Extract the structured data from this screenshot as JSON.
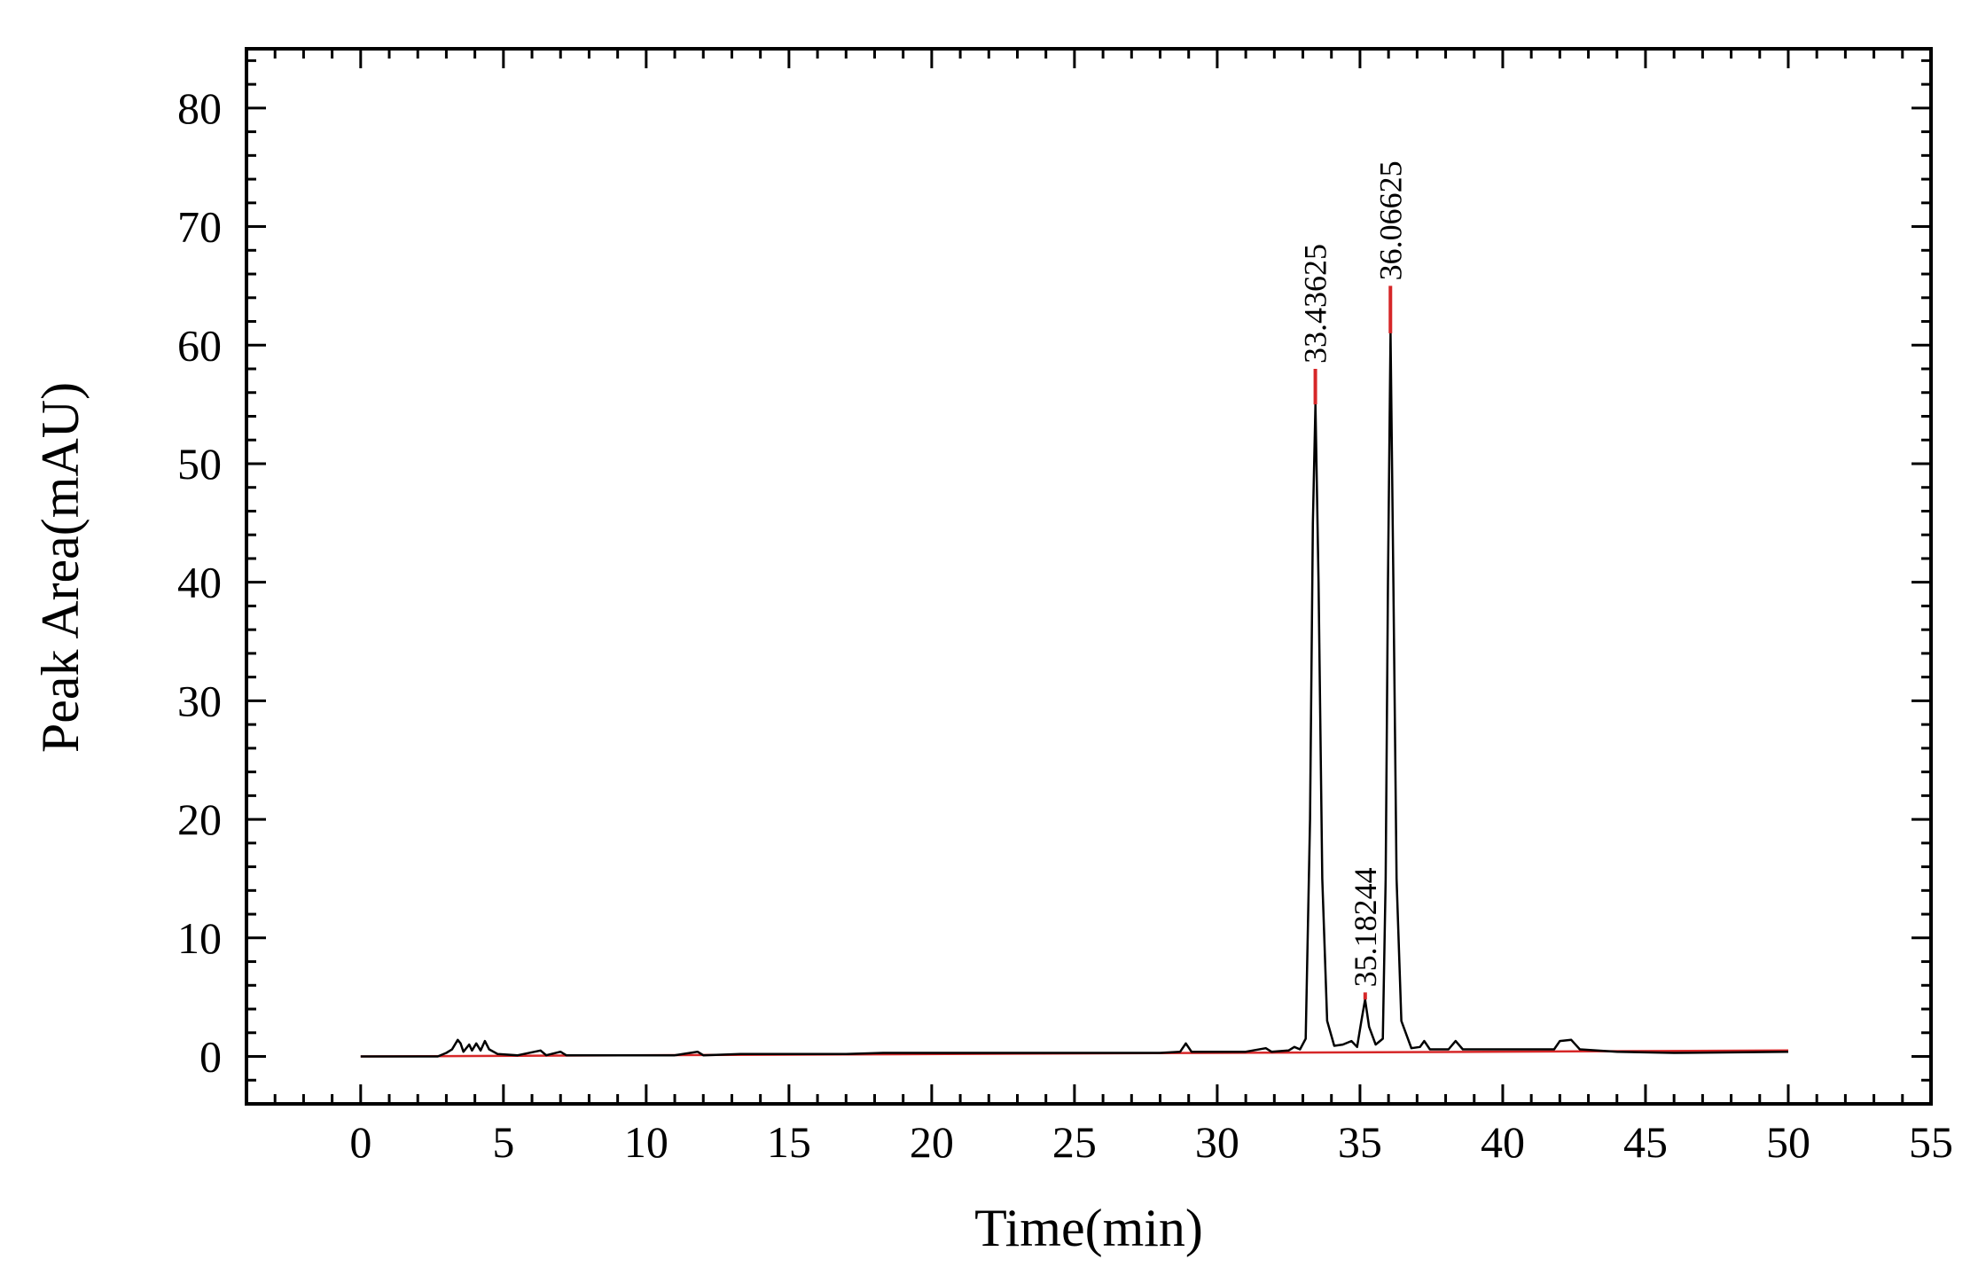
{
  "chart_data": {
    "type": "line",
    "title": "",
    "xlabel": "Time(min)",
    "ylabel": "Peak Area(mAU)",
    "xlim": [
      -4,
      55
    ],
    "ylim": [
      -4,
      85
    ],
    "x_ticks": [
      0,
      5,
      10,
      15,
      20,
      25,
      30,
      35,
      40,
      45,
      50,
      55
    ],
    "y_ticks": [
      0,
      10,
      20,
      30,
      40,
      50,
      60,
      70,
      80
    ],
    "grid": false,
    "legend": "none",
    "colors": {
      "signal": "#000000",
      "baseline": "#d62728"
    },
    "series": [
      {
        "points": [
          [
            0,
            0.0
          ],
          [
            2.7,
            0.0
          ],
          [
            3.0,
            0.3
          ],
          [
            3.2,
            0.6
          ],
          [
            3.4,
            1.4
          ],
          [
            3.5,
            1.1
          ],
          [
            3.6,
            0.4
          ],
          [
            3.8,
            1.0
          ],
          [
            3.9,
            0.5
          ],
          [
            4.05,
            1.1
          ],
          [
            4.2,
            0.5
          ],
          [
            4.35,
            1.3
          ],
          [
            4.5,
            0.6
          ],
          [
            4.8,
            0.2
          ],
          [
            5.5,
            0.1
          ],
          [
            6.3,
            0.5
          ],
          [
            6.5,
            0.1
          ],
          [
            7.0,
            0.4
          ],
          [
            7.2,
            0.1
          ],
          [
            11.0,
            0.1
          ],
          [
            11.8,
            0.4
          ],
          [
            12.0,
            0.1
          ],
          [
            13.3,
            0.2
          ],
          [
            17.0,
            0.2
          ],
          [
            18.3,
            0.3
          ],
          [
            22.0,
            0.3
          ],
          [
            24.0,
            0.3
          ],
          [
            28.0,
            0.3
          ],
          [
            28.7,
            0.4
          ],
          [
            28.9,
            1.1
          ],
          [
            29.1,
            0.4
          ],
          [
            31.0,
            0.4
          ],
          [
            31.7,
            0.7
          ],
          [
            31.9,
            0.4
          ],
          [
            32.5,
            0.5
          ],
          [
            32.7,
            0.8
          ],
          [
            32.9,
            0.6
          ],
          [
            33.1,
            1.5
          ],
          [
            33.25,
            20.0
          ],
          [
            33.35,
            45.0
          ],
          [
            33.44,
            55.0
          ],
          [
            33.55,
            40.0
          ],
          [
            33.68,
            15.0
          ],
          [
            33.85,
            3.0
          ],
          [
            34.1,
            0.9
          ],
          [
            34.4,
            1.0
          ],
          [
            34.7,
            1.3
          ],
          [
            34.9,
            0.8
          ],
          [
            35.05,
            3.0
          ],
          [
            35.18,
            4.8
          ],
          [
            35.32,
            2.5
          ],
          [
            35.55,
            1.0
          ],
          [
            35.8,
            1.5
          ],
          [
            35.9,
            15.0
          ],
          [
            35.98,
            40.0
          ],
          [
            36.07,
            61.0
          ],
          [
            36.17,
            40.0
          ],
          [
            36.28,
            15.0
          ],
          [
            36.45,
            3.0
          ],
          [
            36.8,
            0.7
          ],
          [
            37.1,
            0.8
          ],
          [
            37.25,
            1.3
          ],
          [
            37.45,
            0.6
          ],
          [
            38.1,
            0.6
          ],
          [
            38.35,
            1.3
          ],
          [
            38.6,
            0.6
          ],
          [
            40.0,
            0.6
          ],
          [
            41.8,
            0.6
          ],
          [
            42.0,
            1.3
          ],
          [
            42.4,
            1.4
          ],
          [
            42.7,
            0.6
          ],
          [
            44.0,
            0.4
          ],
          [
            46.0,
            0.3
          ],
          [
            50.0,
            0.4
          ]
        ]
      },
      {
        "points": [
          [
            0,
            0.0
          ],
          [
            50,
            0.5
          ]
        ]
      }
    ],
    "peak_labels": [
      {
        "text": "33.43625",
        "x": 33.43625,
        "y": 55.0,
        "marker_top": 58.0
      },
      {
        "text": "35.18244",
        "x": 35.18244,
        "y": 4.8,
        "marker_top": 5.4
      },
      {
        "text": "36.06625",
        "x": 36.06625,
        "y": 61.0,
        "marker_top": 65.0
      }
    ]
  }
}
